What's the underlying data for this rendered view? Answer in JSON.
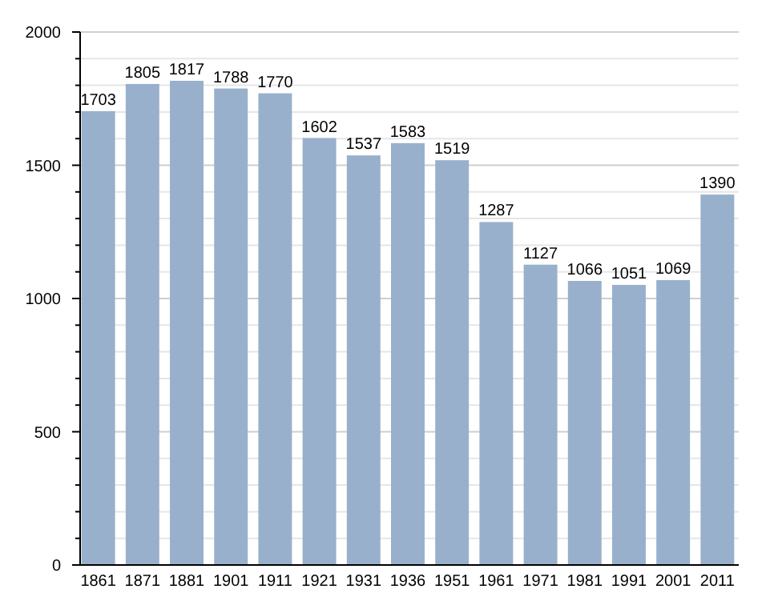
{
  "chart_data": {
    "type": "bar",
    "categories": [
      "1861",
      "1871",
      "1881",
      "1901",
      "1911",
      "1921",
      "1931",
      "1936",
      "1951",
      "1961",
      "1971",
      "1981",
      "1991",
      "2001",
      "2011"
    ],
    "values": [
      1703,
      1805,
      1817,
      1788,
      1770,
      1602,
      1537,
      1583,
      1519,
      1287,
      1127,
      1066,
      1051,
      1069,
      1390
    ],
    "color": "#98b0cb",
    "data_labels": true,
    "ylim": [
      0,
      2000
    ],
    "yticks": [
      0,
      {
        "value": 100,
        "label": null
      },
      {
        "value": 200,
        "label": null
      },
      {
        "value": 300,
        "label": null
      },
      {
        "value": 400,
        "label": null
      },
      500,
      {
        "value": 600,
        "label": null
      },
      {
        "value": 700,
        "label": null
      },
      {
        "value": 800,
        "label": null
      },
      {
        "value": 900,
        "label": null
      },
      1000,
      {
        "value": 1100,
        "label": null
      },
      {
        "value": 1200,
        "label": null
      },
      {
        "value": 1300,
        "label": null
      },
      {
        "value": 1400,
        "label": null
      },
      1500,
      {
        "value": 1600,
        "label": null
      },
      {
        "value": 1700,
        "label": null
      },
      {
        "value": 1800,
        "label": null
      },
      {
        "value": 1900,
        "label": null
      },
      2000
    ],
    "grid": "y"
  }
}
